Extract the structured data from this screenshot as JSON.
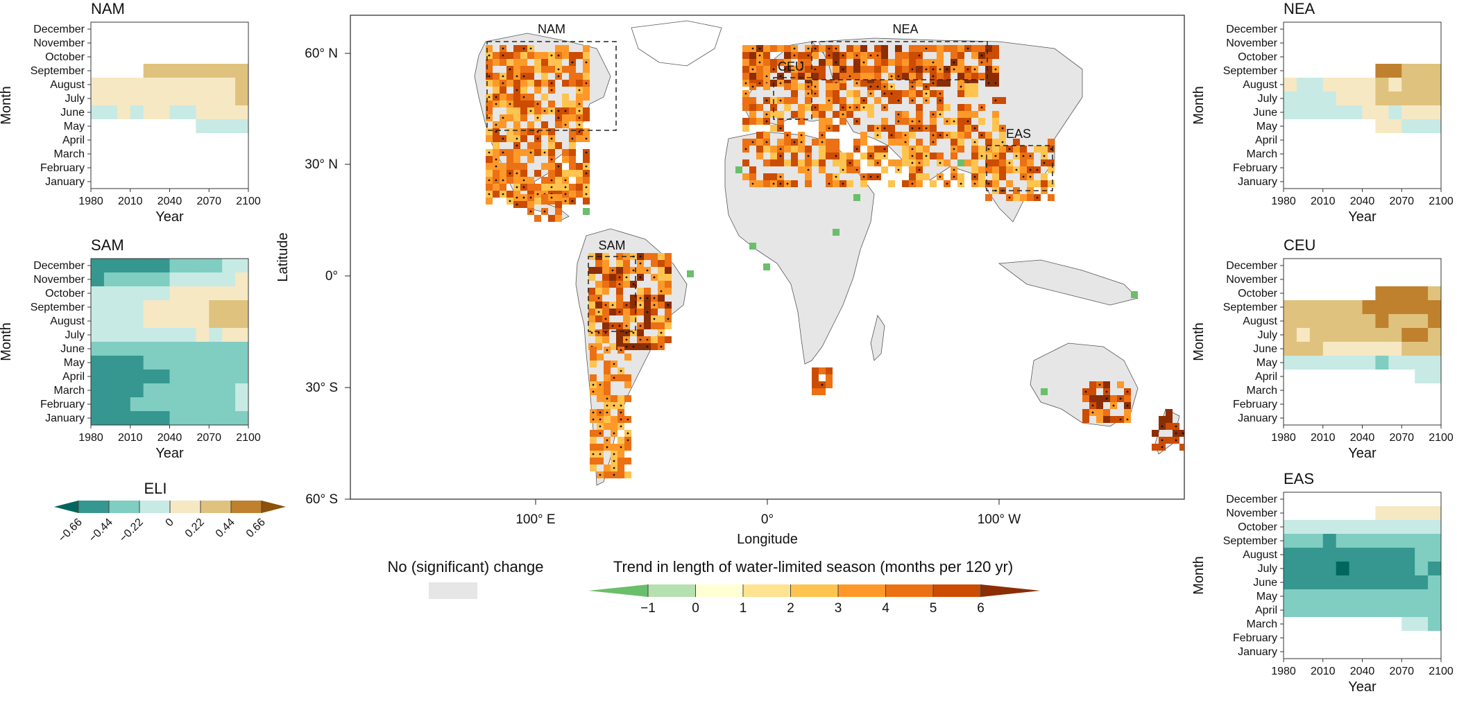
{
  "figure": {
    "map": {
      "xlabel": "Longitude",
      "ylabel": "Latitude",
      "lat_ticks": [
        "60° N",
        "30° N",
        "0°",
        "30° S",
        "60° S"
      ],
      "lon_ticks": [
        "100° E",
        "0°",
        "100° W"
      ],
      "regions": [
        {
          "name": "NAM"
        },
        {
          "name": "CEU"
        },
        {
          "name": "NEA"
        },
        {
          "name": "EAS"
        },
        {
          "name": "SAM"
        }
      ],
      "no_change_label": "No (significant) change",
      "no_change_color": "#e6e6e6",
      "trend_legend": {
        "title": "Trend in length of water-limited season (months per 120 yr)",
        "ticks": [
          "−1",
          "0",
          "1",
          "2",
          "3",
          "4",
          "5",
          "6"
        ],
        "colors": [
          "#6abf6a",
          "#b5e0b0",
          "#ffffd4",
          "#fee391",
          "#fec44f",
          "#fe9929",
          "#ec7014",
          "#cc4c02",
          "#8c2d04"
        ]
      }
    },
    "eli_legend": {
      "title": "ELI",
      "ticks": [
        "−0.66",
        "−0.44",
        "−0.22",
        "0",
        "0.22",
        "0.44",
        "0.66"
      ],
      "colors": [
        "#01665e",
        "#35978f",
        "#80cdc1",
        "#c7eae5",
        "#f6e8c3",
        "#dfc27d",
        "#bf812d",
        "#8c510a"
      ]
    }
  },
  "chart_data": [
    {
      "type": "heatmap",
      "title": "NAM",
      "xlabel": "Year",
      "ylabel": "Month",
      "x_ticks": [
        "1980",
        "2010",
        "2040",
        "2070",
        "2100"
      ],
      "y_ticks": [
        "December",
        "November",
        "October",
        "September",
        "August",
        "July",
        "June",
        "May",
        "April",
        "March",
        "February",
        "January"
      ],
      "x_bins": [
        1980,
        1990,
        2000,
        2010,
        2020,
        2030,
        2040,
        2050,
        2060,
        2070,
        2080,
        2090
      ],
      "rows_top_to_bottom": [
        [
          0,
          0,
          0,
          0,
          0,
          0,
          0,
          0,
          0,
          0,
          0,
          0
        ],
        [
          0,
          0,
          0,
          0,
          0,
          0,
          0,
          0,
          0,
          0,
          0,
          0
        ],
        [
          0,
          0,
          0,
          0,
          0,
          0,
          0,
          0,
          0,
          0,
          0,
          0
        ],
        [
          0,
          0,
          0,
          0,
          0.33,
          0.33,
          0.33,
          0.33,
          0.33,
          0.33,
          0.33,
          0.33
        ],
        [
          0.11,
          0.11,
          0.11,
          0.11,
          0.11,
          0.11,
          0.11,
          0.11,
          0.11,
          0.11,
          0.11,
          0.33
        ],
        [
          0.11,
          0.11,
          0.11,
          0.11,
          0.11,
          0.11,
          0.11,
          0.11,
          0.11,
          0.11,
          0.11,
          0.33
        ],
        [
          -0.11,
          -0.11,
          0.11,
          -0.11,
          0.11,
          0.11,
          -0.11,
          -0.11,
          0.11,
          0.11,
          0.11,
          0.11
        ],
        [
          0,
          0,
          0,
          0,
          0,
          0,
          0,
          0,
          -0.11,
          -0.11,
          -0.11,
          -0.11
        ],
        [
          0,
          0,
          0,
          0,
          0,
          0,
          0,
          0,
          0,
          0,
          0,
          0
        ],
        [
          0,
          0,
          0,
          0,
          0,
          0,
          0,
          0,
          0,
          0,
          0,
          0
        ],
        [
          0,
          0,
          0,
          0,
          0,
          0,
          0,
          0,
          0,
          0,
          0,
          0
        ],
        [
          0,
          0,
          0,
          0,
          0,
          0,
          0,
          0,
          0,
          0,
          0,
          0
        ]
      ]
    },
    {
      "type": "heatmap",
      "title": "SAM",
      "xlabel": "Year",
      "ylabel": "Month",
      "x_ticks": [
        "1980",
        "2010",
        "2040",
        "2070",
        "2100"
      ],
      "y_ticks": [
        "December",
        "November",
        "October",
        "September",
        "August",
        "July",
        "June",
        "May",
        "April",
        "March",
        "February",
        "January"
      ],
      "x_bins": [
        1980,
        1990,
        2000,
        2010,
        2020,
        2030,
        2040,
        2050,
        2060,
        2070,
        2080,
        2090
      ],
      "rows_top_to_bottom": [
        [
          -0.55,
          -0.55,
          -0.55,
          -0.55,
          -0.55,
          -0.55,
          -0.33,
          -0.33,
          -0.33,
          -0.33,
          -0.11,
          -0.11
        ],
        [
          -0.55,
          -0.33,
          -0.33,
          -0.33,
          -0.33,
          -0.33,
          -0.11,
          -0.11,
          -0.11,
          -0.11,
          -0.11,
          0.11
        ],
        [
          -0.11,
          -0.11,
          -0.11,
          -0.11,
          -0.11,
          -0.11,
          0.11,
          0.11,
          0.11,
          0.11,
          0.11,
          0.11
        ],
        [
          -0.11,
          -0.11,
          -0.11,
          -0.11,
          0.11,
          0.11,
          0.11,
          0.11,
          0.11,
          0.33,
          0.33,
          0.33
        ],
        [
          -0.11,
          -0.11,
          -0.11,
          -0.11,
          0.11,
          0.11,
          0.11,
          0.11,
          0.11,
          0.33,
          0.33,
          0.33
        ],
        [
          -0.11,
          -0.11,
          -0.11,
          -0.11,
          -0.11,
          -0.11,
          -0.11,
          -0.11,
          0.11,
          -0.11,
          0.11,
          0.11
        ],
        [
          -0.33,
          -0.33,
          -0.33,
          -0.33,
          -0.33,
          -0.33,
          -0.33,
          -0.33,
          -0.33,
          -0.33,
          -0.33,
          -0.33
        ],
        [
          -0.55,
          -0.55,
          -0.55,
          -0.55,
          -0.33,
          -0.33,
          -0.33,
          -0.33,
          -0.33,
          -0.33,
          -0.33,
          -0.33
        ],
        [
          -0.55,
          -0.55,
          -0.55,
          -0.55,
          -0.55,
          -0.55,
          -0.33,
          -0.33,
          -0.33,
          -0.33,
          -0.33,
          -0.33
        ],
        [
          -0.55,
          -0.55,
          -0.55,
          -0.55,
          -0.33,
          -0.33,
          -0.33,
          -0.33,
          -0.33,
          -0.33,
          -0.33,
          -0.11
        ],
        [
          -0.55,
          -0.55,
          -0.55,
          -0.33,
          -0.33,
          -0.33,
          -0.33,
          -0.33,
          -0.33,
          -0.33,
          -0.33,
          -0.11
        ],
        [
          -0.55,
          -0.55,
          -0.55,
          -0.55,
          -0.55,
          -0.55,
          -0.33,
          -0.33,
          -0.33,
          -0.33,
          -0.33,
          -0.33
        ]
      ]
    },
    {
      "type": "heatmap",
      "title": "NEA",
      "xlabel": "Year",
      "ylabel": "Month",
      "x_ticks": [
        "1980",
        "2010",
        "2040",
        "2070",
        "2100"
      ],
      "y_ticks": [
        "December",
        "November",
        "October",
        "September",
        "August",
        "July",
        "June",
        "May",
        "April",
        "March",
        "February",
        "January"
      ],
      "x_bins": [
        1980,
        1990,
        2000,
        2010,
        2020,
        2030,
        2040,
        2050,
        2060,
        2070,
        2080,
        2090
      ],
      "rows_top_to_bottom": [
        [
          0,
          0,
          0,
          0,
          0,
          0,
          0,
          0,
          0,
          0,
          0,
          0
        ],
        [
          0,
          0,
          0,
          0,
          0,
          0,
          0,
          0,
          0,
          0,
          0,
          0
        ],
        [
          0,
          0,
          0,
          0,
          0,
          0,
          0,
          0,
          0,
          0,
          0,
          0
        ],
        [
          0,
          0,
          0,
          0,
          0,
          0,
          0,
          0.55,
          0.55,
          0.33,
          0.33,
          0.33
        ],
        [
          0.11,
          -0.11,
          -0.11,
          0.11,
          0.11,
          0.11,
          0.11,
          0.33,
          0.11,
          0.33,
          0.33,
          0.33
        ],
        [
          -0.11,
          -0.11,
          -0.11,
          -0.11,
          0.11,
          0.11,
          0.11,
          0.33,
          0.33,
          0.33,
          0.33,
          0.33
        ],
        [
          -0.11,
          -0.11,
          -0.11,
          -0.11,
          -0.11,
          -0.11,
          0.11,
          0.11,
          -0.11,
          0.11,
          0.11,
          0.11
        ],
        [
          0,
          0,
          0,
          0,
          0,
          0,
          0,
          0.11,
          0.11,
          -0.11,
          -0.11,
          -0.11
        ],
        [
          0,
          0,
          0,
          0,
          0,
          0,
          0,
          0,
          0,
          0,
          0,
          0
        ],
        [
          0,
          0,
          0,
          0,
          0,
          0,
          0,
          0,
          0,
          0,
          0,
          0
        ],
        [
          0,
          0,
          0,
          0,
          0,
          0,
          0,
          0,
          0,
          0,
          0,
          0
        ],
        [
          0,
          0,
          0,
          0,
          0,
          0,
          0,
          0,
          0,
          0,
          0,
          0
        ]
      ]
    },
    {
      "type": "heatmap",
      "title": "CEU",
      "xlabel": "Year",
      "ylabel": "Month",
      "x_ticks": [
        "1980",
        "2010",
        "2040",
        "2070",
        "2100"
      ],
      "y_ticks": [
        "December",
        "November",
        "October",
        "September",
        "August",
        "July",
        "June",
        "May",
        "April",
        "March",
        "February",
        "January"
      ],
      "x_bins": [
        1980,
        1990,
        2000,
        2010,
        2020,
        2030,
        2040,
        2050,
        2060,
        2070,
        2080,
        2090
      ],
      "rows_top_to_bottom": [
        [
          0,
          0,
          0,
          0,
          0,
          0,
          0,
          0,
          0,
          0,
          0,
          0
        ],
        [
          0,
          0,
          0,
          0,
          0,
          0,
          0,
          0,
          0,
          0,
          0,
          0
        ],
        [
          0,
          0,
          0,
          0,
          0,
          0,
          0,
          0.55,
          0.55,
          0.55,
          0.55,
          0.33
        ],
        [
          0.33,
          0.33,
          0.33,
          0.33,
          0.33,
          0.33,
          0.55,
          0.55,
          0.55,
          0.55,
          0.55,
          0.55
        ],
        [
          0.33,
          0.33,
          0.33,
          0.33,
          0.33,
          0.33,
          0.33,
          0.55,
          0.33,
          0.33,
          0.33,
          0.55
        ],
        [
          0.33,
          0.11,
          0.33,
          0.33,
          0.33,
          0.33,
          0.33,
          0.33,
          0.33,
          0.55,
          0.55,
          0.33
        ],
        [
          0.33,
          0.33,
          0.33,
          0.11,
          0.11,
          0.11,
          0.11,
          0.11,
          0.11,
          0.33,
          0.33,
          0.33
        ],
        [
          -0.11,
          -0.11,
          -0.11,
          -0.11,
          -0.11,
          -0.11,
          -0.11,
          -0.33,
          -0.11,
          -0.11,
          -0.11,
          -0.11
        ],
        [
          0,
          0,
          0,
          0,
          0,
          0,
          0,
          0,
          0,
          0,
          -0.11,
          -0.11
        ],
        [
          0,
          0,
          0,
          0,
          0,
          0,
          0,
          0,
          0,
          0,
          0,
          0
        ],
        [
          0,
          0,
          0,
          0,
          0,
          0,
          0,
          0,
          0,
          0,
          0,
          0
        ],
        [
          0,
          0,
          0,
          0,
          0,
          0,
          0,
          0,
          0,
          0,
          0,
          0
        ]
      ]
    },
    {
      "type": "heatmap",
      "title": "EAS",
      "xlabel": "Year",
      "ylabel": "Month",
      "x_ticks": [
        "1980",
        "2010",
        "2040",
        "2070",
        "2100"
      ],
      "y_ticks": [
        "December",
        "November",
        "October",
        "September",
        "August",
        "July",
        "June",
        "May",
        "April",
        "March",
        "February",
        "January"
      ],
      "x_bins": [
        1980,
        1990,
        2000,
        2010,
        2020,
        2030,
        2040,
        2050,
        2060,
        2070,
        2080,
        2090
      ],
      "rows_top_to_bottom": [
        [
          0,
          0,
          0,
          0,
          0,
          0,
          0,
          0,
          0,
          0,
          0,
          0
        ],
        [
          0,
          0,
          0,
          0,
          0,
          0,
          0,
          0.11,
          0.11,
          0.11,
          0.11,
          0.11
        ],
        [
          -0.11,
          -0.11,
          -0.11,
          -0.11,
          -0.11,
          -0.11,
          -0.11,
          -0.11,
          -0.11,
          -0.11,
          -0.11,
          -0.11
        ],
        [
          -0.33,
          -0.33,
          -0.33,
          -0.55,
          -0.33,
          -0.33,
          -0.33,
          -0.33,
          -0.33,
          -0.33,
          -0.33,
          -0.33
        ],
        [
          -0.55,
          -0.55,
          -0.55,
          -0.55,
          -0.55,
          -0.55,
          -0.55,
          -0.55,
          -0.55,
          -0.55,
          -0.33,
          -0.33
        ],
        [
          -0.55,
          -0.55,
          -0.55,
          -0.55,
          -0.77,
          -0.55,
          -0.55,
          -0.55,
          -0.55,
          -0.55,
          -0.33,
          -0.55
        ],
        [
          -0.55,
          -0.55,
          -0.55,
          -0.55,
          -0.55,
          -0.55,
          -0.55,
          -0.55,
          -0.55,
          -0.55,
          -0.55,
          -0.33
        ],
        [
          -0.33,
          -0.33,
          -0.33,
          -0.33,
          -0.33,
          -0.33,
          -0.33,
          -0.33,
          -0.33,
          -0.33,
          -0.33,
          -0.33
        ],
        [
          -0.33,
          -0.33,
          -0.33,
          -0.33,
          -0.33,
          -0.33,
          -0.33,
          -0.33,
          -0.33,
          -0.33,
          -0.33,
          -0.33
        ],
        [
          0,
          0,
          0,
          0,
          0,
          0,
          0,
          0,
          0,
          -0.11,
          -0.11,
          -0.33
        ],
        [
          0,
          0,
          0,
          0,
          0,
          0,
          0,
          0,
          0,
          0,
          0,
          0
        ],
        [
          0,
          0,
          0,
          0,
          0,
          0,
          0,
          0,
          0,
          0,
          0,
          0
        ]
      ]
    }
  ]
}
